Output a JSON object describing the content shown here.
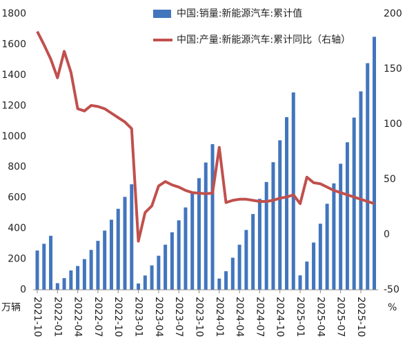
{
  "chart_data": {
    "type": "bar_line",
    "ylabel": "万辆",
    "y2label": "%",
    "categories": [
      "2021-10",
      null,
      null,
      "2022-01",
      null,
      null,
      "2022-04",
      null,
      null,
      "2022-07",
      null,
      null,
      "2022-10",
      null,
      null,
      "2023-01",
      null,
      null,
      "2023-04",
      null,
      null,
      "2023-07",
      null,
      null,
      "2023-10",
      null,
      null,
      "2024-01",
      null,
      null,
      "2024-04",
      null,
      null,
      "2024-07",
      null,
      null,
      "2024-10",
      null,
      null,
      "2025-01",
      null,
      null,
      "2025-04",
      null,
      null,
      "2025-07",
      null,
      null,
      "2025-10",
      null,
      null
    ],
    "series": [
      {
        "name": "中国:销量:新能源汽车:累计值",
        "type": "bar",
        "color": "#4275bd",
        "axis": "y",
        "values": [
          256,
          300,
          352,
          43,
          76,
          126,
          155,
          200,
          260,
          319,
          386,
          457,
          528,
          606,
          688,
          41,
          93,
          159,
          222,
          294,
          375,
          453,
          537,
          628,
          728,
          830,
          950,
          73,
          121,
          209,
          294,
          390,
          494,
          593,
          703,
          832,
          975,
          1126,
          1287,
          94,
          184,
          308,
          431,
          561,
          694,
          822,
          962,
          1123,
          1294,
          1478,
          1650
        ]
      },
      {
        "name": "中国:产量:新能源汽车:累计同比（右轴）",
        "type": "line",
        "color": "#c0504d",
        "axis": "y2",
        "values": [
          184,
          172,
          159,
          142,
          166,
          147,
          114,
          112,
          117,
          116,
          114,
          110,
          106,
          102,
          96,
          -6,
          20,
          26,
          44,
          48,
          45,
          43,
          40,
          38,
          37.5,
          37,
          37.5,
          79,
          29,
          31,
          32,
          32,
          31,
          30,
          30,
          31,
          33,
          34,
          36,
          28,
          52,
          47,
          46,
          43,
          40,
          38,
          36,
          34,
          32,
          30,
          28
        ]
      }
    ],
    "ylim": [
      0,
      1800
    ],
    "yticks": [
      0,
      200,
      400,
      600,
      800,
      1000,
      1200,
      1400,
      1600,
      1800
    ],
    "y2lim": [
      -50,
      200
    ],
    "y2ticks": [
      -50,
      0,
      50,
      100,
      150,
      200
    ]
  }
}
